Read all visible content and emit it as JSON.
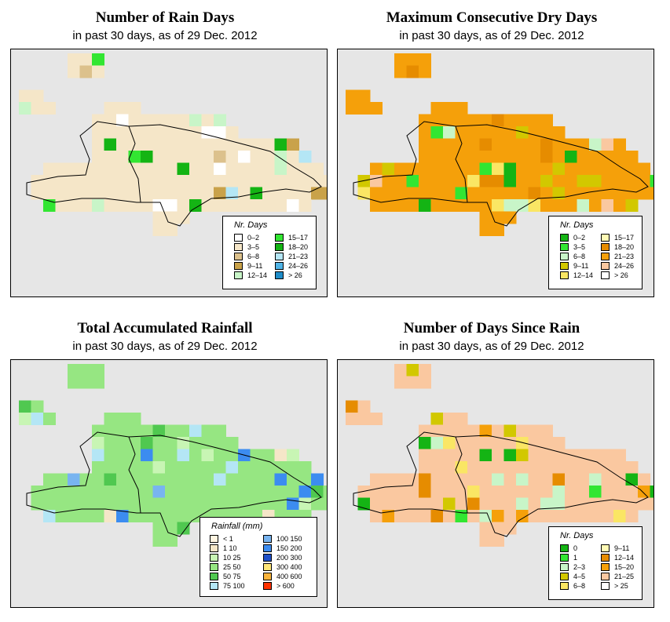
{
  "panels": [
    {
      "title": "Number of Rain Days",
      "subtitle": "in past 30 days, as of  29 Dec. 2012",
      "legend_title": "Nr. Days",
      "legend_items": [
        {
          "label": "0–2",
          "color": "#ffffff"
        },
        {
          "label": "3–5",
          "color": "#f5e6c8"
        },
        {
          "label": "6–8",
          "color": "#dcc18c"
        },
        {
          "label": "9–11",
          "color": "#c9a24a"
        },
        {
          "label": "12–14",
          "color": "#c8f5c8"
        },
        {
          "label": "15–17",
          "color": "#32e632"
        },
        {
          "label": "18–20",
          "color": "#14b414"
        },
        {
          "label": "21–23",
          "color": "#b4e6f5"
        },
        {
          "label": "24–26",
          "color": "#50b4e6"
        },
        {
          "label": "> 26",
          "color": "#1e8cc8"
        }
      ]
    },
    {
      "title": "Maximum Consecutive Dry Days",
      "subtitle": "in past 30 days, as of  29 Dec. 2012",
      "legend_title": "Nr. Days",
      "legend_items": [
        {
          "label": "0–2",
          "color": "#14b414"
        },
        {
          "label": "3–5",
          "color": "#32e632"
        },
        {
          "label": "6–8",
          "color": "#c8f5c8"
        },
        {
          "label": "9–11",
          "color": "#d2c800"
        },
        {
          "label": "12–14",
          "color": "#fae664"
        },
        {
          "label": "15–17",
          "color": "#fffab4"
        },
        {
          "label": "18–20",
          "color": "#e68c00"
        },
        {
          "label": "21–23",
          "color": "#f5a00a"
        },
        {
          "label": "24–26",
          "color": "#fac8a0"
        },
        {
          "label": "> 26",
          "color": "#ffffff"
        }
      ]
    },
    {
      "title": "Total Accumulated Rainfall",
      "subtitle": "in past 30 days, as of  29 Dec. 2012",
      "legend_title": "Rainfall (mm)",
      "legend_items": [
        {
          "label": "< 1",
          "color": "#fff5e1"
        },
        {
          "label": "1   10",
          "color": "#f5e6c8"
        },
        {
          "label": "10   25",
          "color": "#c8f5b4"
        },
        {
          "label": "25   50",
          "color": "#96e682"
        },
        {
          "label": "50   75",
          "color": "#50c850"
        },
        {
          "label": "75   100",
          "color": "#b4e6f5"
        },
        {
          "label": "100   150",
          "color": "#78b4f0"
        },
        {
          "label": "150   200",
          "color": "#3c8cf0"
        },
        {
          "label": "200   300",
          "color": "#1e50c8"
        },
        {
          "label": "300   400",
          "color": "#ffe678"
        },
        {
          "label": "400   600",
          "color": "#fab43c"
        },
        {
          "label": "> 600",
          "color": "#ff3200"
        }
      ]
    },
    {
      "title": "Number of Days Since Rain",
      "subtitle": "in past 30 days, as of  29 Dec. 2012",
      "legend_title": "Nr. Days",
      "legend_items": [
        {
          "label": "0",
          "color": "#14b414"
        },
        {
          "label": "1",
          "color": "#32e632"
        },
        {
          "label": "2–3",
          "color": "#c8f5c8"
        },
        {
          "label": "4–5",
          "color": "#d2c800"
        },
        {
          "label": "6–8",
          "color": "#fae664"
        },
        {
          "label": "9–11",
          "color": "#fffab4"
        },
        {
          "label": "12–14",
          "color": "#e68c00"
        },
        {
          "label": "15–20",
          "color": "#f5a00a"
        },
        {
          "label": "21–25",
          "color": "#fac8a0"
        },
        {
          "label": "> 25",
          "color": "#ffffff"
        }
      ]
    }
  ]
}
